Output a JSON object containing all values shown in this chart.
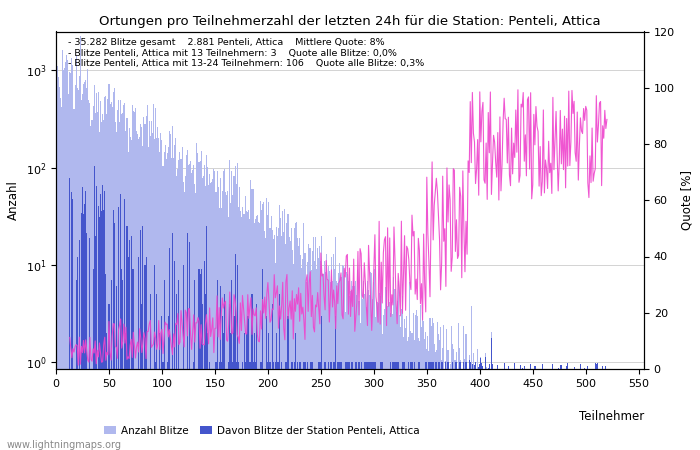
{
  "title": "Ortungen pro Teilnehmerzahl der letzten 24h für die Station: Penteli, Attica",
  "xlabel": "Teilnehmer",
  "ylabel_left": "Anzahl",
  "ylabel_right": "Quote [%]",
  "annotation_lines": [
    "35.282 Blitze gesamt    2.881 Penteli, Attica    Mittlere Quote: 8%",
    "Blitze Penteli, Attica mit 13 Teilnehmern: 3    Quote alle Blitze: 0,0%",
    "Blitze Penteli, Attica mit 13-24 Teilnehmern: 106    Quote alle Blitze: 0,3%"
  ],
  "watermark": "www.lightningmaps.org",
  "bar_color_light": "#b0b8ee",
  "bar_color_dark": "#4455cc",
  "line_color": "#ee44cc",
  "xlim": [
    0,
    555
  ],
  "ylim_log": [
    0.85,
    2500
  ],
  "ylim_right": [
    0,
    120
  ],
  "yticks_right": [
    0,
    20,
    40,
    60,
    80,
    100,
    120
  ],
  "figsize": [
    7.0,
    4.5
  ],
  "dpi": 100
}
